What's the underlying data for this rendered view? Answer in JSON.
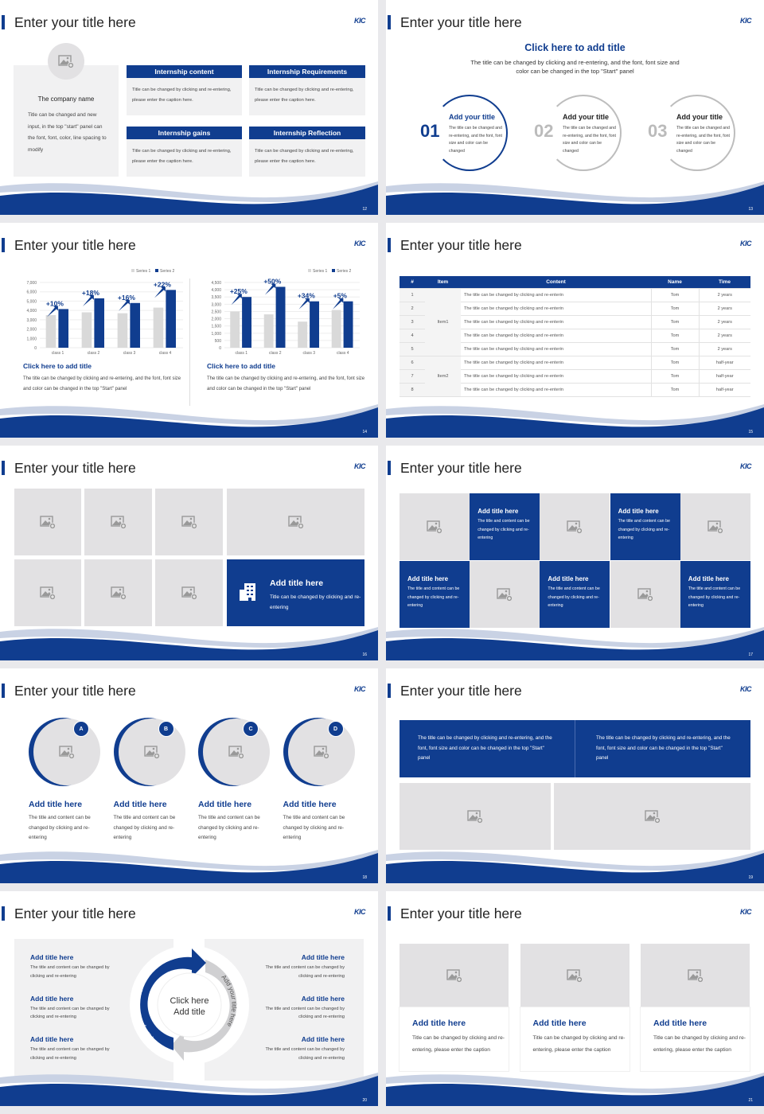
{
  "common": {
    "title": "Enter your title here",
    "logo": "KIC",
    "accent": "#103d8f",
    "gray": "#f1f1f2"
  },
  "s12": {
    "page": "12",
    "company": "The company name",
    "company_text": "Title can be changed and new input, in the top \"start\" panel can the font, font, color, line spacing to modify",
    "boxes": [
      {
        "h": "Internship content",
        "t": "Title can be changed by clicking and re-entering, please enter the caption here."
      },
      {
        "h": "Internship Requirements",
        "t": "Title can be changed by clicking and re-entering, please enter the caption here."
      },
      {
        "h": "Internship gains",
        "t": "Title can be changed by clicking and re-entering, please enter the caption here."
      },
      {
        "h": "Internship Reflection",
        "t": "Title can be changed by clicking and re-entering, please enter the caption here."
      }
    ]
  },
  "s13": {
    "page": "13",
    "heading": "Click here to add title",
    "sub": "The title can be changed by clicking and re-entering, and the font, font size and color can be changed in the top \"Start\" panel",
    "items": [
      {
        "n": "01",
        "h": "Add your title",
        "t": "The title can be changed and re-entering, and the font, font size and color can be changed"
      },
      {
        "n": "02",
        "h": "Add your title",
        "t": "The title can be changed and re-entering, and the font, font size and color can be changed"
      },
      {
        "n": "03",
        "h": "Add your title",
        "t": "The title can be changed and re-entering, and the font, font size and color can be changed"
      }
    ]
  },
  "s14": {
    "page": "14",
    "blocks": [
      {
        "h": "Click here to add title",
        "t": "The title can be changed by clicking and re-entering, and the font, font size and color can be changed in the top \"Start\" panel"
      },
      {
        "h": "Click here to add title",
        "t": "The title can be changed by clicking and re-entering, and the font, font size and color can be changed in the top \"Start\" panel"
      }
    ]
  },
  "chart_data": [
    {
      "type": "bar",
      "categories": [
        "class 1",
        "class 2",
        "class 3",
        "class 4"
      ],
      "series": [
        {
          "name": "Series 1",
          "values": [
            3500,
            3800,
            3700,
            4300
          ],
          "color": "#d9d9d9"
        },
        {
          "name": "Series 2",
          "values": [
            4150,
            5300,
            4800,
            6200
          ],
          "color": "#103d8f"
        }
      ],
      "ylim": [
        0,
        7000
      ],
      "ticks": [
        "0",
        "1,000",
        "2,000",
        "3,000",
        "4,000",
        "5,000",
        "6,000",
        "7,000"
      ],
      "annotations": [
        "+10%",
        "+18%",
        "+16%",
        "+22%"
      ],
      "legend": "top-right",
      "grid": true
    },
    {
      "type": "bar",
      "categories": [
        "class 1",
        "class 2",
        "class 3",
        "class 4"
      ],
      "series": [
        {
          "name": "Series 1",
          "values": [
            2500,
            2300,
            1800,
            2600
          ],
          "color": "#d9d9d9"
        },
        {
          "name": "Series 2",
          "values": [
            3500,
            4200,
            3200,
            3200
          ],
          "color": "#103d8f"
        }
      ],
      "ylim": [
        0,
        4500
      ],
      "ticks": [
        "0",
        "500",
        "1,000",
        "1,500",
        "2,000",
        "2,500",
        "3,000",
        "3,500",
        "4,000",
        "4,500"
      ],
      "annotations": [
        "+25%",
        "+50%",
        "+34%",
        "+5%"
      ],
      "legend": "top-right",
      "grid": true
    }
  ],
  "s15": {
    "page": "15",
    "headers": [
      "#",
      "Item",
      "Content",
      "Name",
      "Time"
    ],
    "groups": [
      "Item1",
      "Item2"
    ],
    "rows": [
      [
        "1",
        "The title can be changed by clicking and re-enterin",
        "Tom",
        "2 years"
      ],
      [
        "2",
        "The title can be changed by clicking and re-enterin",
        "Tom",
        "2 years"
      ],
      [
        "3",
        "The title can be changed by clicking and re-enterin",
        "Tom",
        "2 years"
      ],
      [
        "4",
        "The title can be changed by clicking and re-enterin",
        "Tom",
        "2 years"
      ],
      [
        "5",
        "The title can be changed by clicking and re-enterin",
        "Tom",
        "2 years"
      ],
      [
        "6",
        "The title can be changed by clicking and re-enterin",
        "Tom",
        "half-year"
      ],
      [
        "7",
        "The title can be changed by clicking and re-enterin",
        "Tom",
        "half-year"
      ],
      [
        "8",
        "The title can be changed by clicking and re-enterin",
        "Tom",
        "half-year"
      ]
    ]
  },
  "s16": {
    "page": "16",
    "h": "Add title here",
    "t": "Title can be changed by clicking and re-entering"
  },
  "s17": {
    "page": "17",
    "h": "Add title here",
    "t": "The title and content can be changed by clicking and re-entering"
  },
  "s18": {
    "page": "18",
    "items": [
      {
        "b": "A",
        "h": "Add title here",
        "t": "The title and content can be changed by clicking and re-entering"
      },
      {
        "b": "B",
        "h": "Add title here",
        "t": "The title and content can be changed by clicking and re-entering"
      },
      {
        "b": "C",
        "h": "Add title here",
        "t": "The title and content can be changed by clicking and re-entering"
      },
      {
        "b": "D",
        "h": "Add title here",
        "t": "The title and content can be changed by clicking and re-entering"
      }
    ]
  },
  "s19": {
    "page": "19",
    "texts": [
      "The title can be changed by clicking and re-entering, and the font, font size and color can be changed in the top \"Start\" panel",
      "The title can be changed by clicking and re-entering, and the font, font size and color can be changed in the top \"Start\" panel"
    ]
  },
  "s20": {
    "page": "20",
    "center": "Click here Add title",
    "arc1": "Add your title here",
    "arc2": "Add your title here",
    "h": "Add title here",
    "t": "The title and content can be changed by clicking and re-entering"
  },
  "s21": {
    "page": "21",
    "cards": [
      {
        "h": "Add title here",
        "t": "Title can be changed by clicking and re-entering, please enter the caption"
      },
      {
        "h": "Add title here",
        "t": "Title can be changed by clicking and re-entering, please enter the caption"
      },
      {
        "h": "Add title here",
        "t": "Title can be changed by clicking and re-entering, please enter the caption"
      }
    ]
  }
}
